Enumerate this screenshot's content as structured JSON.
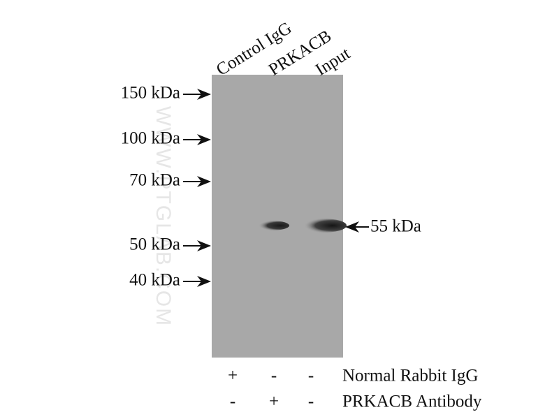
{
  "figure": {
    "lanes": [
      "Control IgG",
      "PRKACB",
      "Input"
    ],
    "markers": [
      "150 kDa",
      "100 kDa",
      "70 kDa",
      "50 kDa",
      "40 kDa"
    ],
    "band_label": "55 kDa",
    "watermark": "WWW.PTGLAB.COM",
    "rows": [
      {
        "label": "Normal Rabbit IgG",
        "signs": [
          "+",
          "-",
          "-"
        ]
      },
      {
        "label": "PRKACB Antibody",
        "signs": [
          "-",
          "+",
          "-"
        ]
      }
    ]
  }
}
